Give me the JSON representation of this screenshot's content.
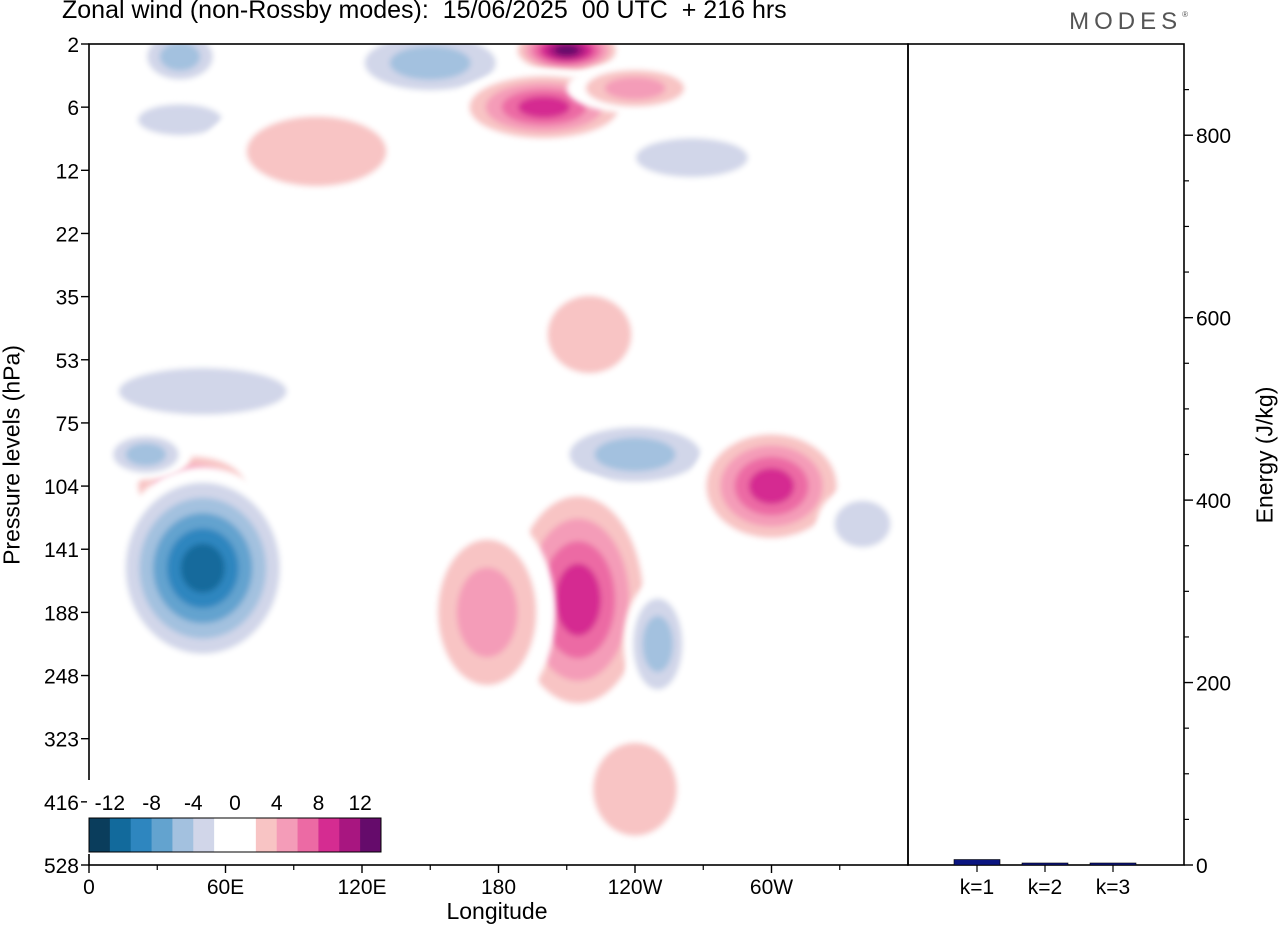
{
  "header": {
    "title": "Zonal wind (non-Rossby modes):  15/06/2025  00 UTC  + 216 hrs",
    "brand": "MODES"
  },
  "chart_data": [
    {
      "type": "heatmap",
      "ylabel": "Pressure levels (hPa)",
      "xlabel": "Longitude",
      "x_ticks": [
        "0",
        "60E",
        "120E",
        "180",
        "120W",
        "60W"
      ],
      "y_ticks": [
        "2",
        "6",
        "12",
        "22",
        "35",
        "53",
        "75",
        "104",
        "141",
        "188",
        "248",
        "323",
        "416",
        "528"
      ],
      "colorbar": {
        "labels": [
          "-12",
          "-8",
          "-4",
          "0",
          "4",
          "8",
          "12"
        ],
        "colors": [
          "#0a3d5c",
          "#126a9c",
          "#2e86bf",
          "#63a3cf",
          "#a3c1df",
          "#d1d6e9",
          "#ffffff",
          "#ffffff",
          "#f8c4c4",
          "#f49cb8",
          "#ec6aa4",
          "#d52c91",
          "#a81680",
          "#650b6b"
        ]
      },
      "features": [
        {
          "lon": 40,
          "level_index": 0.2,
          "w": 20,
          "h": 0.5,
          "value": -5
        },
        {
          "lon": 150,
          "level_index": 0.3,
          "w": 40,
          "h": 0.6,
          "value": -5
        },
        {
          "lon": 210,
          "level_index": 0.1,
          "w": 25,
          "h": 0.4,
          "value": 13
        },
        {
          "lon": 200,
          "level_index": 1.0,
          "w": 40,
          "h": 0.6,
          "value": 10
        },
        {
          "lon": 240,
          "level_index": 0.7,
          "w": 30,
          "h": 0.4,
          "value": 5
        },
        {
          "lon": 40,
          "level_index": 1.2,
          "w": 30,
          "h": 0.4,
          "value": -4
        },
        {
          "lon": 100,
          "level_index": 1.7,
          "w": 50,
          "h": 0.9,
          "value": 4
        },
        {
          "lon": 265,
          "level_index": 1.8,
          "w": 40,
          "h": 0.5,
          "value": -4
        },
        {
          "lon": 175,
          "level_index": 3.0,
          "w": 70,
          "h": 0.7,
          "value": -2
        },
        {
          "lon": 220,
          "level_index": 4.6,
          "w": 30,
          "h": 1.0,
          "value": 4
        },
        {
          "lon": 50,
          "level_index": 5.5,
          "w": 60,
          "h": 0.6,
          "value": -3
        },
        {
          "lon": 45,
          "level_index": 7.0,
          "w": 30,
          "h": 0.6,
          "value": 7
        },
        {
          "lon": 25,
          "level_index": 6.5,
          "w": 20,
          "h": 0.4,
          "value": -5
        },
        {
          "lon": 240,
          "level_index": 6.5,
          "w": 40,
          "h": 0.6,
          "value": -5
        },
        {
          "lon": 300,
          "level_index": 7.0,
          "w": 35,
          "h": 1.0,
          "value": 10
        },
        {
          "lon": 340,
          "level_index": 7.6,
          "w": 20,
          "h": 0.6,
          "value": -4
        },
        {
          "lon": 50,
          "level_index": 8.3,
          "w": 40,
          "h": 1.6,
          "value": -12
        },
        {
          "lon": 215,
          "level_index": 8.8,
          "w": 35,
          "h": 2.0,
          "value": 10
        },
        {
          "lon": 175,
          "level_index": 9.0,
          "w": 30,
          "h": 1.6,
          "value": 6
        },
        {
          "lon": 250,
          "level_index": 9.5,
          "w": 15,
          "h": 1.0,
          "value": -5
        },
        {
          "lon": 240,
          "level_index": 11.8,
          "w": 30,
          "h": 1.2,
          "value": 4
        }
      ]
    },
    {
      "type": "bar",
      "ylabel": "Energy (J/kg)",
      "categories": [
        "k=1",
        "k=2",
        "k=3"
      ],
      "values": [
        6,
        2,
        1
      ],
      "ylim": [
        0,
        900
      ],
      "y_ticks": [
        0,
        200,
        400,
        600,
        800
      ],
      "bar_color": "#0b1580"
    }
  ]
}
